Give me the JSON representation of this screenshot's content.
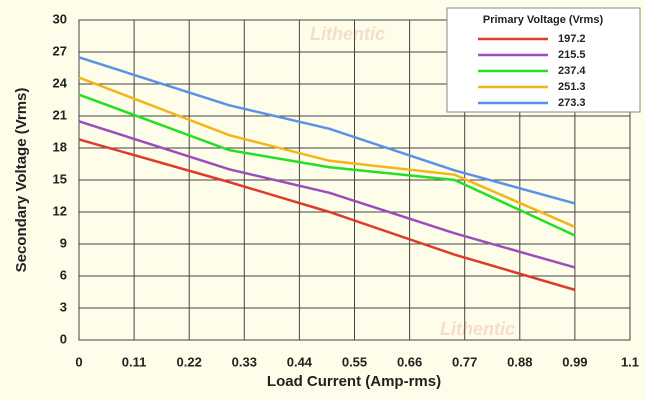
{
  "chart_data": {
    "type": "line",
    "x_label": "Load Current (Amp-rms)",
    "y_label": "Secondary Voltage (Vrms)",
    "legend_title": "Primary Voltage (Vrms)",
    "watermark": "Lithentic",
    "x": [
      0,
      0.3,
      0.5,
      0.75,
      0.99
    ],
    "series": [
      {
        "name": "197.2",
        "color": "#dd3b2b",
        "values": [
          18.8,
          14.8,
          12.0,
          8.0,
          4.7
        ]
      },
      {
        "name": "215.5",
        "color": "#9b4dbc",
        "values": [
          20.5,
          16.0,
          13.8,
          10.0,
          6.8
        ]
      },
      {
        "name": "237.4",
        "color": "#22e022",
        "values": [
          23.0,
          17.8,
          16.2,
          15.0,
          9.8
        ]
      },
      {
        "name": "251.3",
        "color": "#f2b51a",
        "values": [
          24.6,
          19.2,
          16.8,
          15.5,
          10.6
        ]
      },
      {
        "name": "273.3",
        "color": "#5b92e5",
        "values": [
          26.5,
          22.0,
          19.8,
          15.9,
          12.8
        ]
      }
    ],
    "xlim": [
      0,
      1.1
    ],
    "xticks": [
      0,
      0.11,
      0.22,
      0.33,
      0.44,
      0.55,
      0.66,
      0.77,
      0.88,
      0.99,
      1.1
    ],
    "ylim": [
      0,
      30
    ],
    "yticks": [
      0,
      3,
      6,
      9,
      12,
      15,
      18,
      21,
      24,
      27,
      30
    ],
    "grid": true,
    "legend": "top-right"
  }
}
